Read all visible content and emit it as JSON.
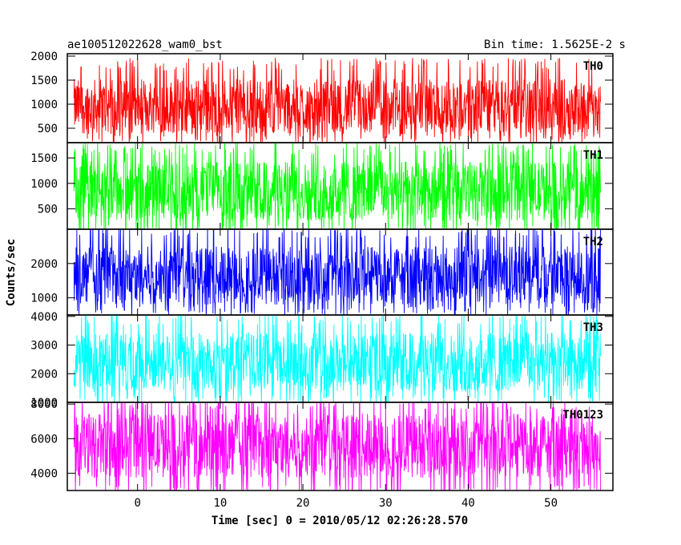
{
  "header": {
    "left": "ae100512022628_wam0_bst",
    "right": "Bin time: 1.5625E-2 s"
  },
  "colors": {
    "TH0": "#ff0000",
    "TH1": "#00ff00",
    "TH2": "#0000ff",
    "TH3": "#00ffff",
    "TH0123": "#ff00ff",
    "axes": "#000000",
    "background": "#ffffff"
  },
  "chart_data": {
    "type": "line",
    "title": "ae100512022628_wam0_bst",
    "subtitle": "Bin time: 1.5625E-2 s",
    "xlabel": "Time [sec] 0 = 2010/05/12 02:26:28.570",
    "ylabel": "Counts/sec",
    "xlim": [
      -8.5,
      57.5
    ],
    "x_ticks": [
      0,
      10,
      20,
      30,
      40,
      50
    ],
    "x_tick_labels": [
      "0",
      "10",
      "20",
      "30",
      "40",
      "50"
    ],
    "data_x_range": [
      -7.7,
      56.0
    ],
    "bin_time": 0.015625,
    "grid": false,
    "legend": "panel labels at top-right of each panel",
    "series": [
      {
        "name": "TH0",
        "ylim": [
          200,
          2050
        ],
        "yticks": [
          500,
          1000,
          1500,
          2000
        ],
        "ytick_labels": [
          "500",
          "1000",
          "1500",
          "2000"
        ],
        "mean": 950,
        "low": 350,
        "high": 1700
      },
      {
        "name": "TH1",
        "ylim": [
          100,
          1800
        ],
        "yticks": [
          500,
          1000,
          1500
        ],
        "ytick_labels": [
          "500",
          "1000",
          "1500"
        ],
        "mean": 850,
        "low": 180,
        "high": 1550
      },
      {
        "name": "TH2",
        "ylim": [
          500,
          3000
        ],
        "yticks": [
          1000,
          2000
        ],
        "ytick_labels": [
          "1000",
          "2000"
        ],
        "mean": 1650,
        "low": 750,
        "high": 2750
      },
      {
        "name": "TH3",
        "ylim": [
          1000,
          4050
        ],
        "yticks": [
          1000,
          2000,
          3000,
          4000
        ],
        "ytick_labels": [
          "1000",
          "2000",
          "3000",
          "4000"
        ],
        "mean": 2400,
        "low": 1250,
        "high": 3700
      },
      {
        "name": "TH0123",
        "ylim": [
          3000,
          8100
        ],
        "yticks": [
          4000,
          6000,
          8000
        ],
        "ytick_labels": [
          "4000",
          "6000",
          "8000"
        ],
        "mean": 5600,
        "low": 3300,
        "high": 7700
      }
    ]
  }
}
